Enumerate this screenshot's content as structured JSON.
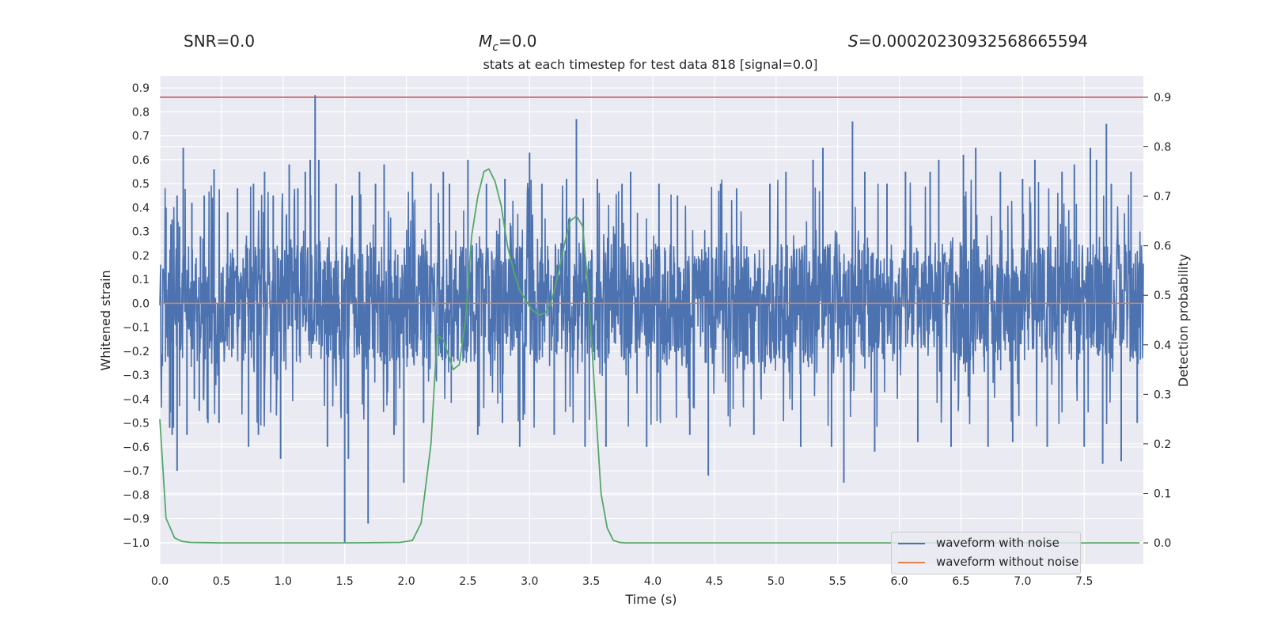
{
  "stats": {
    "snr": "SNR=0.0",
    "mc_symbol": "M",
    "mc_sub": "c",
    "mc_value": "=0.0",
    "s_symbol": "S",
    "s_value": "=0.00020230932568665594"
  },
  "chart_data": {
    "type": "line",
    "title": "stats at each timestep for test data 818 [signal=0.0]",
    "xlabel": "Time (s)",
    "ylabel": "Whitened strain",
    "y2label": "Detection probability",
    "xlim": [
      0.0,
      7.98
    ],
    "ylim": [
      -1.09,
      0.95
    ],
    "y2lim": [
      -0.043,
      0.943
    ],
    "xticks": [
      0.0,
      0.5,
      1.0,
      1.5,
      2.0,
      2.5,
      3.0,
      3.5,
      4.0,
      4.5,
      5.0,
      5.5,
      6.0,
      6.5,
      7.0,
      7.5
    ],
    "xtick_labels": [
      "0.0",
      "0.5",
      "1.0",
      "1.5",
      "2.0",
      "2.5",
      "3.0",
      "3.5",
      "4.0",
      "4.5",
      "5.0",
      "5.5",
      "6.0",
      "6.5",
      "7.0",
      "7.5"
    ],
    "yticks": [
      0.9,
      0.8,
      0.7,
      0.6,
      0.5,
      0.4,
      0.3,
      0.2,
      0.1,
      0.0,
      -0.1,
      -0.2,
      -0.3,
      -0.4,
      -0.5,
      -0.6,
      -0.7,
      -0.8,
      -0.9,
      -1.0
    ],
    "ytick_labels": [
      "0.9",
      "0.8",
      "0.7",
      "0.6",
      "0.5",
      "0.4",
      "0.3",
      "0.2",
      "0.1",
      "0.0",
      "−0.1",
      "−0.2",
      "−0.3",
      "−0.4",
      "−0.5",
      "−0.6",
      "−0.7",
      "−0.8",
      "−0.9",
      "−1.0"
    ],
    "y2ticks": [
      0.9,
      0.8,
      0.7,
      0.6,
      0.5,
      0.4,
      0.3,
      0.2,
      0.1,
      0.0
    ],
    "y2tick_labels": [
      "0.9",
      "0.8",
      "0.7",
      "0.6",
      "0.5",
      "0.4",
      "0.3",
      "0.2",
      "0.1",
      "0.0"
    ],
    "threshold": {
      "value": 0.9,
      "axis": "y2",
      "color": "#c44e52"
    },
    "series": [
      {
        "name": "waveform with noise",
        "axis": "y",
        "color": "#4c72b0",
        "description": "whitened noisy strain, core band roughly -0.3 to 0.3 with spikes",
        "peaks": [
          {
            "t": 0.05,
            "v": 0.4
          },
          {
            "t": 0.08,
            "v": -0.52
          },
          {
            "t": 0.1,
            "v": -0.55
          },
          {
            "t": 0.1,
            "v": 0.35
          },
          {
            "t": 0.11,
            "v": -0.52
          },
          {
            "t": 0.14,
            "v": -0.7
          },
          {
            "t": 0.14,
            "v": 0.45
          },
          {
            "t": 0.16,
            "v": 0.32
          },
          {
            "t": 0.19,
            "v": 0.65
          },
          {
            "t": 0.22,
            "v": -0.55
          },
          {
            "t": 0.26,
            "v": 0.42
          },
          {
            "t": 0.28,
            "v": -0.4
          },
          {
            "t": 0.32,
            "v": -0.45
          },
          {
            "t": 0.33,
            "v": 0.28
          },
          {
            "t": 0.36,
            "v": 0.45
          },
          {
            "t": 0.39,
            "v": -0.5
          },
          {
            "t": 0.44,
            "v": 0.56
          },
          {
            "t": 0.48,
            "v": -0.5
          },
          {
            "t": 0.55,
            "v": 0.38
          },
          {
            "t": 0.63,
            "v": 0.48
          },
          {
            "t": 0.72,
            "v": -0.6
          },
          {
            "t": 0.76,
            "v": 0.5
          },
          {
            "t": 0.8,
            "v": -0.55
          },
          {
            "t": 0.85,
            "v": 0.55
          },
          {
            "t": 0.92,
            "v": 0.45
          },
          {
            "t": 0.98,
            "v": -0.65
          },
          {
            "t": 1.05,
            "v": 0.58
          },
          {
            "t": 1.12,
            "v": 0.48
          },
          {
            "t": 1.18,
            "v": 0.55
          },
          {
            "t": 1.22,
            "v": 0.6
          },
          {
            "t": 1.26,
            "v": 0.87
          },
          {
            "t": 1.29,
            "v": 0.6
          },
          {
            "t": 1.36,
            "v": -0.6
          },
          {
            "t": 1.43,
            "v": 0.5
          },
          {
            "t": 1.5,
            "v": -1.0
          },
          {
            "t": 1.53,
            "v": -0.65
          },
          {
            "t": 1.56,
            "v": 0.45
          },
          {
            "t": 1.62,
            "v": 0.55
          },
          {
            "t": 1.69,
            "v": -0.92
          },
          {
            "t": 1.75,
            "v": 0.5
          },
          {
            "t": 1.82,
            "v": 0.58
          },
          {
            "t": 1.9,
            "v": -0.55
          },
          {
            "t": 1.98,
            "v": -0.75
          },
          {
            "t": 2.05,
            "v": 0.55
          },
          {
            "t": 2.14,
            "v": -0.5
          },
          {
            "t": 2.2,
            "v": 0.5
          },
          {
            "t": 2.3,
            "v": 0.55
          },
          {
            "t": 2.35,
            "v": 0.5
          },
          {
            "t": 2.5,
            "v": 0.6
          },
          {
            "t": 2.58,
            "v": -0.55
          },
          {
            "t": 2.65,
            "v": 0.5
          },
          {
            "t": 2.78,
            "v": -0.5
          },
          {
            "t": 2.8,
            "v": 0.52
          },
          {
            "t": 2.92,
            "v": -0.6
          },
          {
            "t": 3.0,
            "v": 0.63
          },
          {
            "t": 3.1,
            "v": 0.5
          },
          {
            "t": 3.2,
            "v": -0.55
          },
          {
            "t": 3.3,
            "v": 0.52
          },
          {
            "t": 3.38,
            "v": 0.77
          },
          {
            "t": 3.45,
            "v": -0.6
          },
          {
            "t": 3.55,
            "v": 0.52
          },
          {
            "t": 3.62,
            "v": -0.6
          },
          {
            "t": 3.75,
            "v": 0.5
          },
          {
            "t": 3.82,
            "v": 0.55
          },
          {
            "t": 3.95,
            "v": -0.6
          },
          {
            "t": 4.05,
            "v": 0.5
          },
          {
            "t": 4.2,
            "v": 0.45
          },
          {
            "t": 4.3,
            "v": -0.55
          },
          {
            "t": 4.45,
            "v": -0.72
          },
          {
            "t": 4.55,
            "v": 0.5
          },
          {
            "t": 4.68,
            "v": 0.48
          },
          {
            "t": 4.82,
            "v": -0.55
          },
          {
            "t": 4.95,
            "v": 0.5
          },
          {
            "t": 5.08,
            "v": 0.55
          },
          {
            "t": 5.2,
            "v": -0.6
          },
          {
            "t": 5.3,
            "v": 0.6
          },
          {
            "t": 5.38,
            "v": 0.65
          },
          {
            "t": 5.45,
            "v": -0.6
          },
          {
            "t": 5.55,
            "v": -0.75
          },
          {
            "t": 5.62,
            "v": 0.76
          },
          {
            "t": 5.72,
            "v": 0.55
          },
          {
            "t": 5.8,
            "v": -0.62
          },
          {
            "t": 5.9,
            "v": 0.5
          },
          {
            "t": 6.05,
            "v": 0.55
          },
          {
            "t": 6.15,
            "v": -0.58
          },
          {
            "t": 6.25,
            "v": 0.55
          },
          {
            "t": 6.32,
            "v": 0.6
          },
          {
            "t": 6.42,
            "v": -0.6
          },
          {
            "t": 6.52,
            "v": 0.62
          },
          {
            "t": 6.62,
            "v": 0.65
          },
          {
            "t": 6.72,
            "v": -0.6
          },
          {
            "t": 6.82,
            "v": 0.55
          },
          {
            "t": 6.92,
            "v": -0.58
          },
          {
            "t": 7.0,
            "v": 0.52
          },
          {
            "t": 7.1,
            "v": 0.6
          },
          {
            "t": 7.2,
            "v": -0.6
          },
          {
            "t": 7.32,
            "v": 0.55
          },
          {
            "t": 7.42,
            "v": 0.58
          },
          {
            "t": 7.5,
            "v": -0.6
          },
          {
            "t": 7.55,
            "v": 0.65
          },
          {
            "t": 7.6,
            "v": 0.6
          },
          {
            "t": 7.65,
            "v": -0.67
          },
          {
            "t": 7.68,
            "v": 0.75
          },
          {
            "t": 7.72,
            "v": 0.5
          },
          {
            "t": 7.8,
            "v": -0.66
          },
          {
            "t": 7.88,
            "v": 0.55
          },
          {
            "t": 7.93,
            "v": -0.5
          }
        ]
      },
      {
        "name": "waveform without noise",
        "axis": "y",
        "color": "#dd8452",
        "x": [
          0.0,
          7.98
        ],
        "values": [
          0.0,
          0.0
        ]
      },
      {
        "name": "detection probability",
        "axis": "y2",
        "color": "#55a868",
        "x": [
          0.0,
          0.05,
          0.12,
          0.18,
          0.25,
          0.5,
          1.0,
          1.5,
          1.95,
          2.05,
          2.12,
          2.2,
          2.25,
          2.3,
          2.38,
          2.43,
          2.48,
          2.53,
          2.58,
          2.63,
          2.67,
          2.72,
          2.77,
          2.82,
          2.87,
          2.92,
          2.97,
          3.02,
          3.08,
          3.13,
          3.18,
          3.23,
          3.28,
          3.33,
          3.38,
          3.43,
          3.48,
          3.53,
          3.58,
          3.63,
          3.68,
          3.73,
          3.78,
          3.85,
          4.0,
          5.0,
          6.0,
          7.0,
          7.95
        ],
        "values": [
          0.25,
          0.05,
          0.01,
          0.003,
          0.001,
          0.0,
          0.0,
          0.0,
          0.001,
          0.005,
          0.04,
          0.2,
          0.42,
          0.41,
          0.35,
          0.36,
          0.45,
          0.62,
          0.7,
          0.75,
          0.755,
          0.73,
          0.68,
          0.6,
          0.55,
          0.51,
          0.49,
          0.47,
          0.46,
          0.465,
          0.49,
          0.54,
          0.6,
          0.65,
          0.66,
          0.64,
          0.5,
          0.3,
          0.1,
          0.03,
          0.005,
          0.001,
          0.0,
          0.0,
          0.0,
          0.0,
          0.0,
          0.0,
          0.0
        ]
      }
    ],
    "legend": [
      {
        "name": "waveform with noise",
        "color": "#4c72b0"
      },
      {
        "name": "waveform without noise",
        "color": "#dd8452"
      }
    ],
    "legend_position": "lower-right",
    "grid": true,
    "background": "#eaeaf2"
  }
}
